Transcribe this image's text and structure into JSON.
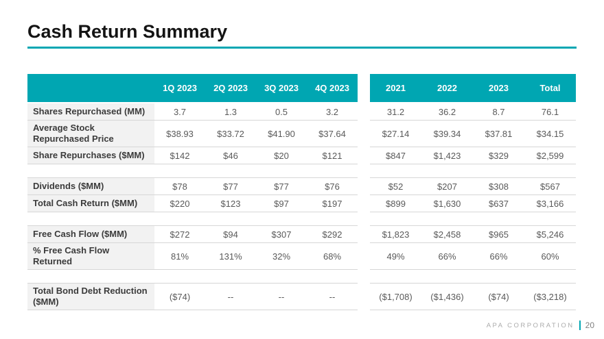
{
  "title": "Cash Return Summary",
  "footer": {
    "company": "APA CORPORATION",
    "page": "20"
  },
  "colors": {
    "accent": "#00A6B2",
    "label_bg": "#F2F2F2",
    "border": "#D6D6D6"
  },
  "chart_data": {
    "type": "table",
    "title": "Cash Return Summary",
    "quarter_columns": [
      "1Q 2023",
      "2Q 2023",
      "3Q 2023",
      "4Q 2023"
    ],
    "year_columns": [
      "2021",
      "2022",
      "2023",
      "Total"
    ],
    "rows": [
      {
        "label": "Shares Repurchased (MM)",
        "quarters": [
          "3.7",
          "1.3",
          "0.5",
          "3.2"
        ],
        "years": [
          "31.2",
          "36.2",
          "8.7",
          "76.1"
        ]
      },
      {
        "label": "Average Stock Repurchased Price",
        "quarters": [
          "$38.93",
          "$33.72",
          "$41.90",
          "$37.64"
        ],
        "years": [
          "$27.14",
          "$39.34",
          "$37.81",
          "$34.15"
        ]
      },
      {
        "label": "Share Repurchases ($MM)",
        "quarters": [
          "$142",
          "$46",
          "$20",
          "$121"
        ],
        "years": [
          "$847",
          "$1,423",
          "$329",
          "$2,599"
        ]
      },
      {
        "type": "spacer"
      },
      {
        "label": "Dividends ($MM)",
        "quarters": [
          "$78",
          "$77",
          "$77",
          "$76"
        ],
        "years": [
          "$52",
          "$207",
          "$308",
          "$567"
        ]
      },
      {
        "label": "Total Cash Return ($MM)",
        "quarters": [
          "$220",
          "$123",
          "$97",
          "$197"
        ],
        "years": [
          "$899",
          "$1,630",
          "$637",
          "$3,166"
        ]
      },
      {
        "type": "spacer"
      },
      {
        "label": "Free Cash Flow ($MM)",
        "quarters": [
          "$272",
          "$94",
          "$307",
          "$292"
        ],
        "years": [
          "$1,823",
          "$2,458",
          "$965",
          "$5,246"
        ]
      },
      {
        "label": "% Free Cash Flow Returned",
        "quarters": [
          "81%",
          "131%",
          "32%",
          "68%"
        ],
        "years": [
          "49%",
          "66%",
          "66%",
          "60%"
        ]
      },
      {
        "type": "spacer"
      },
      {
        "label": "Total Bond Debt Reduction ($MM)",
        "quarters": [
          "($74)",
          "--",
          "--",
          "--"
        ],
        "years": [
          "($1,708)",
          "($1,436)",
          "($74)",
          "($3,218)"
        ]
      }
    ]
  }
}
